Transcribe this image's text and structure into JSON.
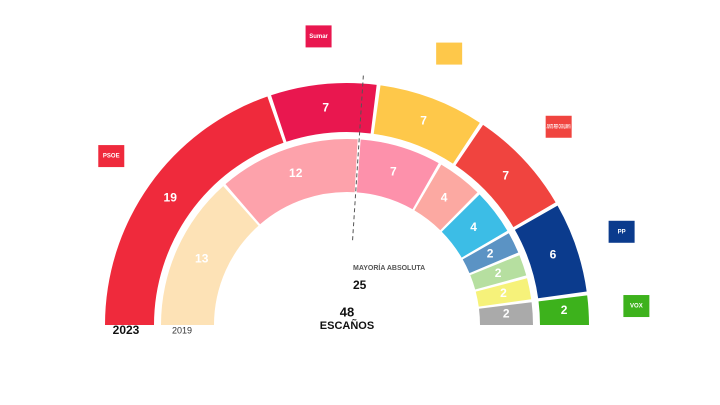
{
  "chart_data": {
    "type": "parliament",
    "center_value": 48,
    "center_label": "ESCAÑOS",
    "majority_label": "MAYORÍA ABSOLUTA",
    "majority": 25,
    "series": [
      {
        "name": "2023",
        "labels": [
          "PSOE",
          "Sumar",
          null,
          "JUNTS PER CATALUNYA",
          "PP",
          "VOX"
        ],
        "values": [
          19,
          7,
          7,
          7,
          6,
          2
        ],
        "colors": [
          "#ef2a3c",
          "#e9174f",
          "#fec84a",
          "#f0443f",
          "#0b3b8d",
          "#3db21c"
        ]
      },
      {
        "name": "2019",
        "values": [
          13,
          12,
          7,
          4,
          4,
          2,
          2,
          2,
          2
        ],
        "colors": [
          "#fde2b6",
          "#fda2ab",
          "#fd91ab",
          "#fca9a2",
          "#3cbde6",
          "#5b93c4",
          "#b6dfa0",
          "#f6f27a",
          "#aaaaaa"
        ]
      }
    ]
  }
}
